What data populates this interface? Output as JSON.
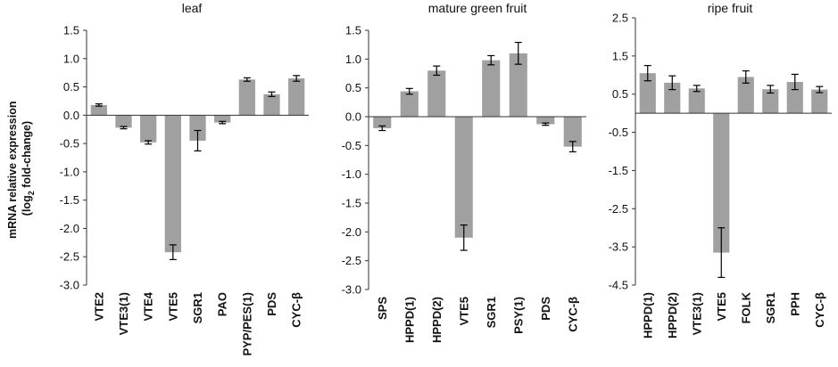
{
  "figure": {
    "ylabel_line1": "mRNA relative expression",
    "ylabel_line2_prefix": "(log",
    "ylabel_line2_sub": "2",
    "ylabel_line2_suffix": " fold-change)"
  },
  "colors": {
    "bar": "#a0a0a0",
    "axis": "#333333",
    "error": "#000000"
  },
  "chart_data": [
    {
      "type": "bar",
      "title": "leaf",
      "categories": [
        "VTE2",
        "VTE3(1)",
        "VTE4",
        "VTE5",
        "SGR1",
        "PAO",
        "PYP/PES(1)",
        "PDS",
        "CYC-β"
      ],
      "values": [
        0.18,
        -0.22,
        -0.48,
        -2.42,
        -0.45,
        -0.13,
        0.63,
        0.37,
        0.65
      ],
      "errors": [
        0.02,
        0.02,
        0.03,
        0.13,
        0.18,
        0.02,
        0.03,
        0.04,
        0.05
      ],
      "ylim": [
        -3.0,
        1.5
      ],
      "yticks": [
        "1.5",
        "1.0",
        "0.5",
        "0.0",
        "-0.5",
        "-1.0",
        "-1.5",
        "-2.0",
        "-2.5",
        "-3.0"
      ],
      "xlabel": "",
      "ylabel": "mRNA relative expression (log2 fold-change)"
    },
    {
      "type": "bar",
      "title": "mature green fruit",
      "categories": [
        "SPS",
        "HPPD(1)",
        "HPPD(2)",
        "VTE5",
        "SGR1",
        "PSY(1)",
        "PDS",
        "CYC-β"
      ],
      "values": [
        -0.2,
        0.44,
        0.8,
        -2.1,
        0.98,
        1.1,
        -0.13,
        -0.52
      ],
      "errors": [
        0.04,
        0.05,
        0.08,
        0.22,
        0.08,
        0.19,
        0.02,
        0.09
      ],
      "ylim": [
        -3.0,
        1.5
      ],
      "yticks": [
        "1.5",
        "1.0",
        "0.5",
        "0.0",
        "-0.5",
        "-1.0",
        "-1.5",
        "-2.0",
        "-2.5",
        "-3.0"
      ],
      "xlabel": "",
      "ylabel": ""
    },
    {
      "type": "bar",
      "title": "ripe fruit",
      "categories": [
        "HPPD(1)",
        "HPPD(2)",
        "VTE3(1)",
        "VTE5",
        "FOLK",
        "SGR1",
        "PPH",
        "CYC-β"
      ],
      "values": [
        1.05,
        0.8,
        0.65,
        -3.65,
        0.95,
        0.63,
        0.82,
        0.62
      ],
      "errors": [
        0.2,
        0.18,
        0.08,
        0.65,
        0.16,
        0.1,
        0.2,
        0.08
      ],
      "ylim": [
        -4.5,
        2.5
      ],
      "yticks": [
        "2.5",
        "1.5",
        "0.5",
        "-0.5",
        "-1.5",
        "-2.5",
        "-3.5",
        "-4.5"
      ],
      "xlabel": "",
      "ylabel": ""
    }
  ]
}
